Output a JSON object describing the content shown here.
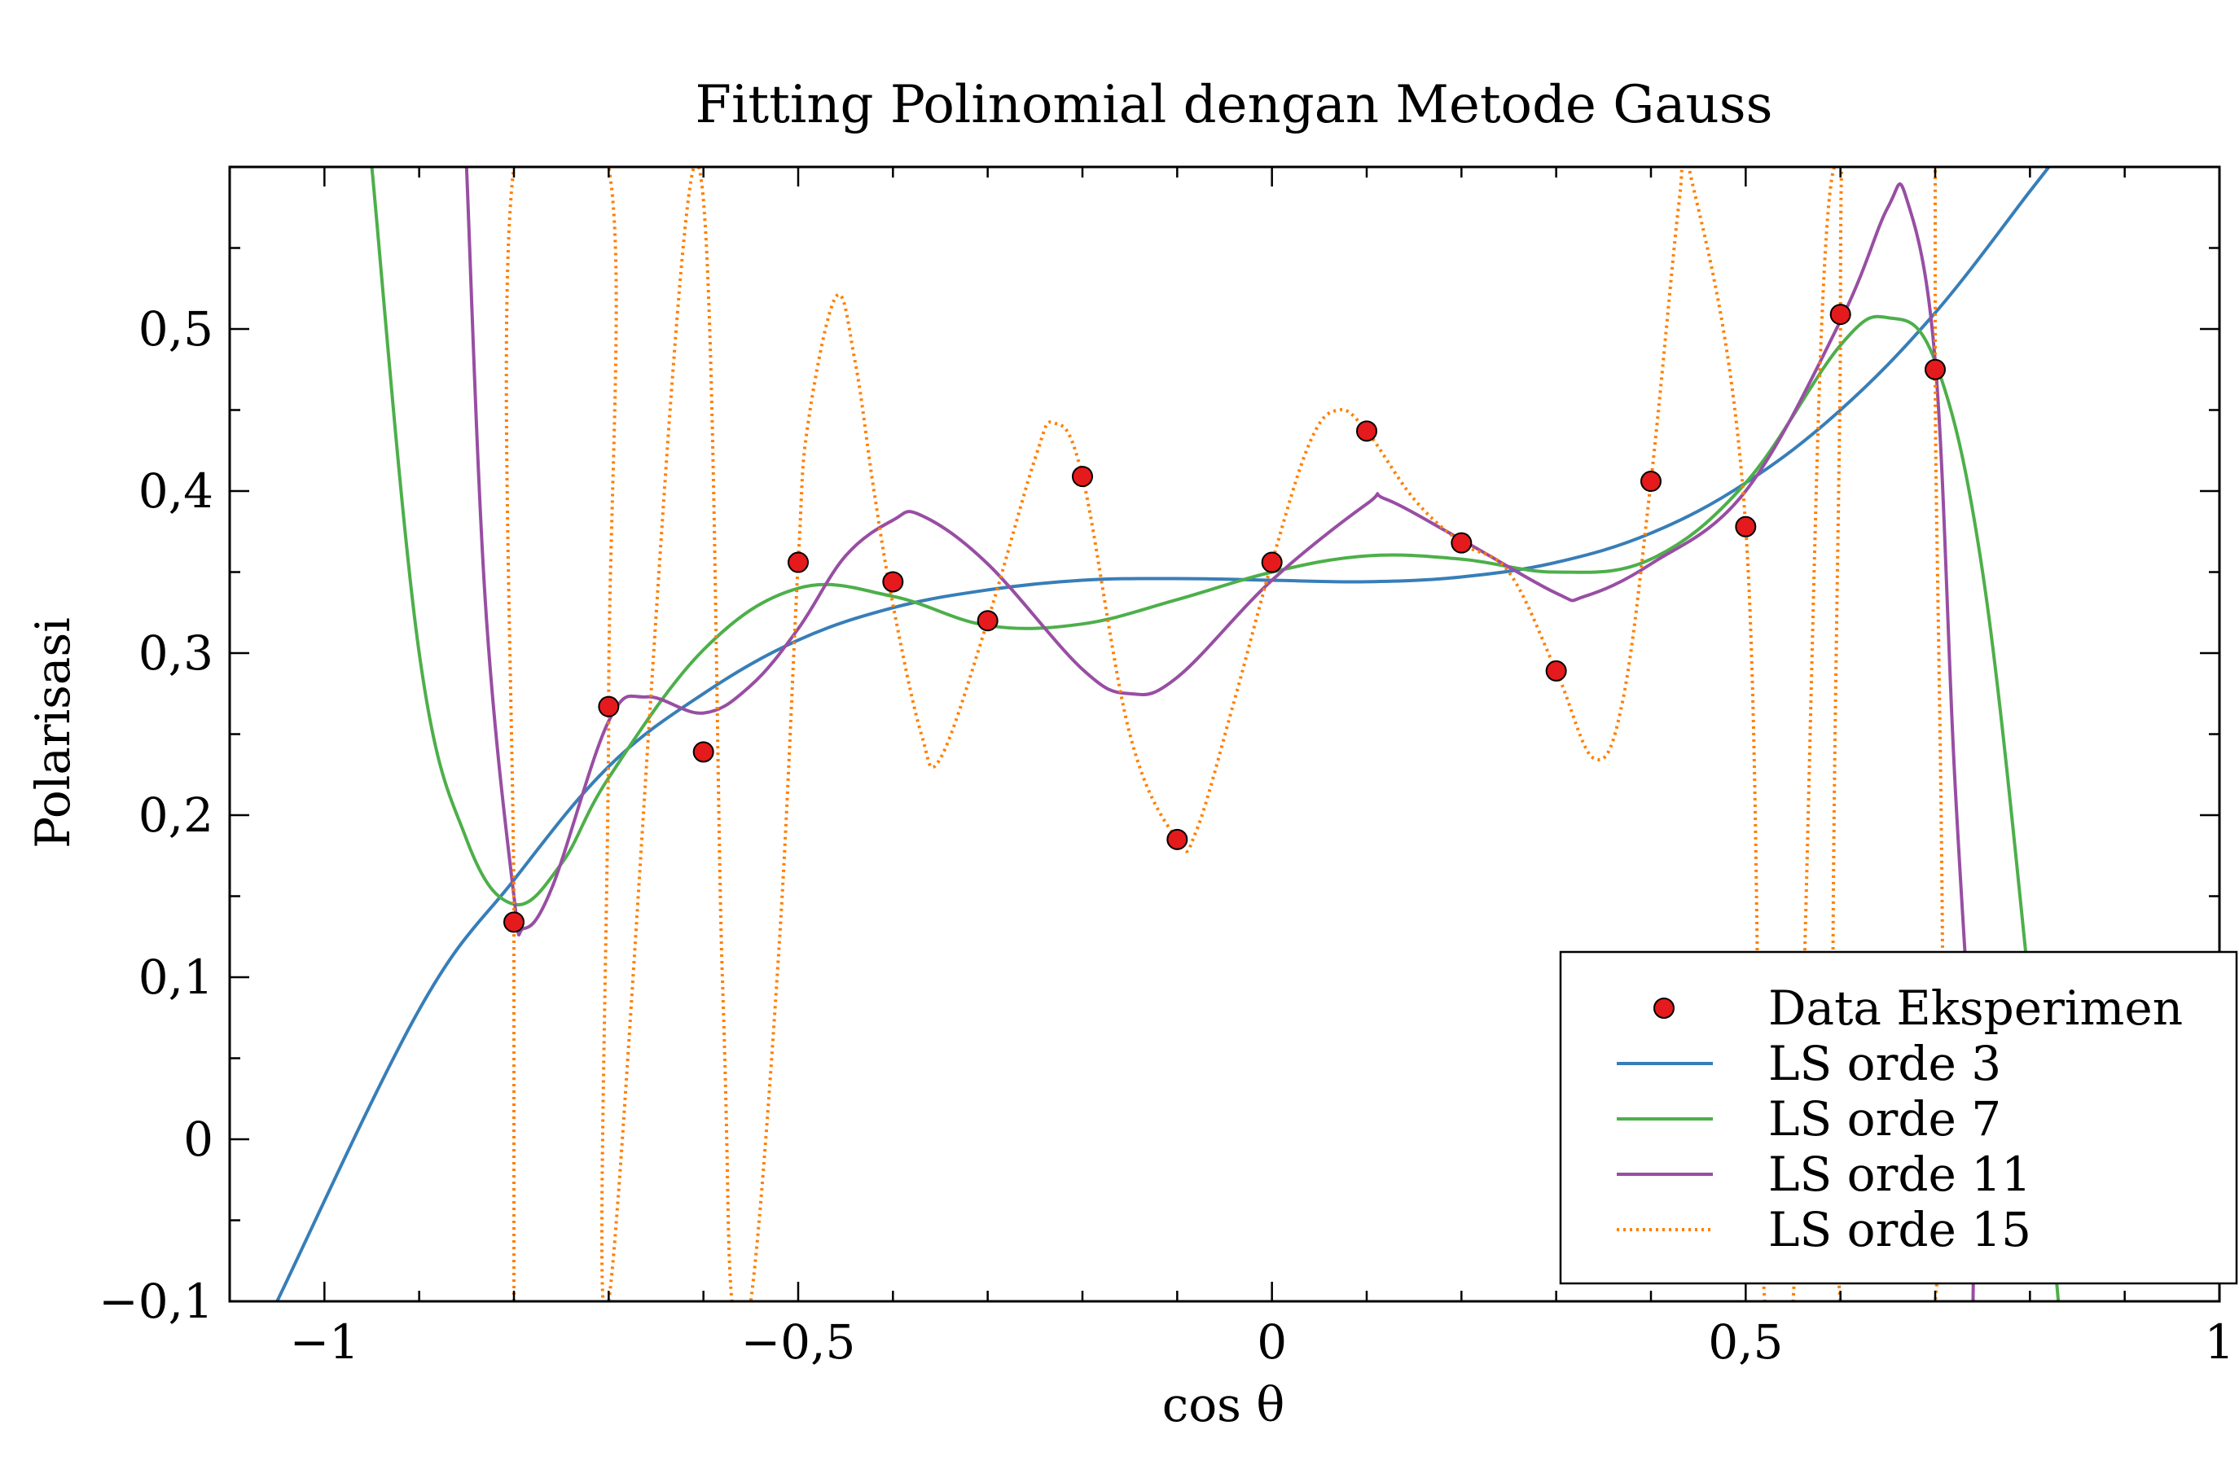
{
  "chart_data": {
    "type": "line",
    "title": "Fitting Polinomial dengan Metode Gauss",
    "xlabel": "cos θ",
    "ylabel": "Polarisasi",
    "xlim": [
      -1.1,
      1.0
    ],
    "ylim": [
      -0.1,
      0.6
    ],
    "xticks": [
      -1,
      -0.5,
      0,
      0.5,
      1
    ],
    "xtick_labels": [
      "−1",
      "−0,5",
      "0",
      "0,5",
      "1"
    ],
    "yticks": [
      -0.1,
      0,
      0.1,
      0.2,
      0.3,
      0.4,
      0.5
    ],
    "ytick_labels": [
      "−0,1",
      "0",
      "0,1",
      "0,2",
      "0,3",
      "0,4",
      "0,5"
    ],
    "grid": false,
    "legend_position": "lower-right",
    "colors": {
      "data": "#e41a1c",
      "ls3": "#377eb8",
      "ls7": "#4daf4a",
      "ls11": "#984ea3",
      "ls15": "#ff7f00"
    },
    "series": [
      {
        "name": "Data Eksperimen",
        "kind": "scatter",
        "x": [
          -0.8,
          -0.7,
          -0.6,
          -0.5,
          -0.4,
          -0.3,
          -0.2,
          -0.1,
          0.0,
          0.1,
          0.2,
          0.3,
          0.4,
          0.5,
          0.6,
          0.7
        ],
        "y": [
          0.134,
          0.267,
          0.239,
          0.356,
          0.344,
          0.32,
          0.409,
          0.185,
          0.356,
          0.437,
          0.368,
          0.289,
          0.406,
          0.378,
          0.509,
          0.475
        ]
      },
      {
        "name": "LS orde 3",
        "kind": "line",
        "x": [
          -1.05,
          -0.9,
          -0.8,
          -0.7,
          -0.6,
          -0.5,
          -0.4,
          -0.3,
          -0.2,
          -0.1,
          0.0,
          0.1,
          0.2,
          0.3,
          0.4,
          0.5,
          0.6,
          0.7,
          0.8,
          0.82
        ],
        "y": [
          -0.1,
          0.08,
          0.16,
          0.23,
          0.275,
          0.308,
          0.328,
          0.339,
          0.345,
          0.346,
          0.345,
          0.344,
          0.347,
          0.356,
          0.374,
          0.405,
          0.45,
          0.51,
          0.585,
          0.6
        ]
      },
      {
        "name": "LS orde 7",
        "kind": "line",
        "x": [
          -0.95,
          -0.9,
          -0.85,
          -0.8,
          -0.75,
          -0.7,
          -0.6,
          -0.5,
          -0.4,
          -0.3,
          -0.2,
          -0.1,
          0.0,
          0.1,
          0.2,
          0.3,
          0.4,
          0.5,
          0.6,
          0.65,
          0.7,
          0.75,
          0.8,
          0.83
        ],
        "y": [
          0.6,
          0.3,
          0.185,
          0.145,
          0.17,
          0.223,
          0.302,
          0.34,
          0.335,
          0.317,
          0.318,
          0.333,
          0.35,
          0.36,
          0.358,
          0.35,
          0.358,
          0.405,
          0.49,
          0.507,
          0.48,
          0.35,
          0.09,
          -0.1
        ]
      },
      {
        "name": "LS orde 11",
        "kind": "line",
        "x": [
          -0.85,
          -0.83,
          -0.8,
          -0.79,
          -0.76,
          -0.7,
          -0.66,
          -0.6,
          -0.55,
          -0.5,
          -0.45,
          -0.4,
          -0.37,
          -0.3,
          -0.2,
          -0.15,
          -0.1,
          0.0,
          0.1,
          0.12,
          0.2,
          0.3,
          0.33,
          0.4,
          0.5,
          0.6,
          0.65,
          0.67,
          0.7,
          0.72,
          0.74,
          0.74
        ],
        "y": [
          0.6,
          0.33,
          0.15,
          0.13,
          0.155,
          0.258,
          0.273,
          0.263,
          0.28,
          0.315,
          0.36,
          0.382,
          0.385,
          0.355,
          0.29,
          0.275,
          0.285,
          0.345,
          0.392,
          0.395,
          0.37,
          0.337,
          0.335,
          0.355,
          0.4,
          0.505,
          0.575,
          0.58,
          0.48,
          0.23,
          0.02,
          -0.1
        ]
      },
      {
        "name": "LS orde 15",
        "kind": "line",
        "dashed": true,
        "x": [
          -0.8,
          -0.8,
          -0.8,
          -0.7,
          -0.7,
          -0.7,
          -0.61,
          -0.58,
          -0.57,
          -0.55,
          -0.52,
          -0.5,
          -0.49,
          -0.46,
          -0.44,
          -0.42,
          -0.4,
          -0.37,
          -0.35,
          -0.3,
          -0.25,
          -0.23,
          -0.2,
          -0.15,
          -0.1,
          -0.08,
          -0.04,
          0.0,
          0.04,
          0.07,
          0.1,
          0.15,
          0.2,
          0.25,
          0.3,
          0.34,
          0.37,
          0.4,
          0.43,
          0.44,
          0.5,
          0.52,
          0.55,
          0.58,
          0.6,
          0.6,
          0.6,
          0.7,
          0.7,
          0.7
        ],
        "y": [
          -0.1,
          0.134,
          0.6,
          0.6,
          0.267,
          -0.1,
          0.6,
          0.1,
          -0.1,
          -0.1,
          0.12,
          0.356,
          0.44,
          0.52,
          0.48,
          0.4,
          0.33,
          0.25,
          0.235,
          0.32,
          0.42,
          0.442,
          0.409,
          0.25,
          0.185,
          0.19,
          0.27,
          0.356,
          0.43,
          0.45,
          0.437,
          0.395,
          0.368,
          0.35,
          0.289,
          0.235,
          0.27,
          0.406,
          0.58,
          0.6,
          0.378,
          -0.1,
          -0.1,
          0.5,
          0.6,
          0.509,
          -0.1,
          -0.1,
          0.475,
          0.6
        ]
      }
    ]
  }
}
